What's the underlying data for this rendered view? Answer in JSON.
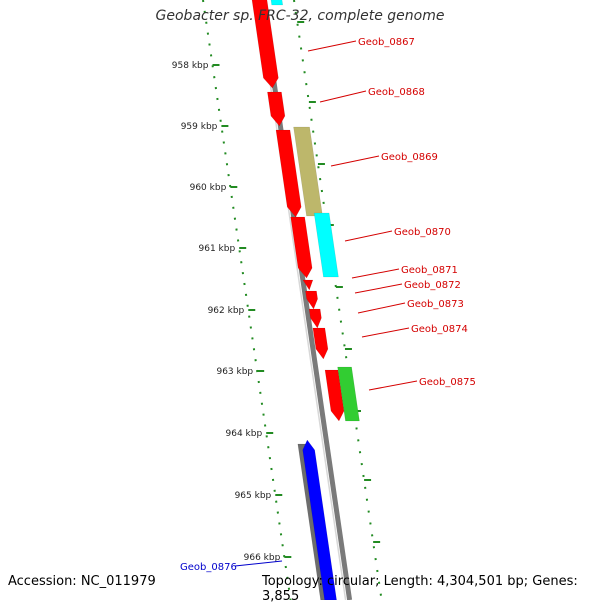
{
  "title": "Geobacter sp. FRC-32, complete genome",
  "footer": {
    "accession": "Accession: NC_011979",
    "summary": "Topology: circular; Length: 4,304,501 bp; Genes: 3,855"
  },
  "colors": {
    "cds_red": "#ff0000",
    "cds_cyan": "#00ffff",
    "cds_khaki": "#bdb76b",
    "cds_green": "#32cd32",
    "cds_blue": "#0000ff",
    "cds_gray": "#808080",
    "tick_green": "#228b22",
    "label_red": "#d40000",
    "label_blue": "#0000cc"
  },
  "ticks": [
    {
      "label": "958 kbp"
    },
    {
      "label": "959 kbp"
    },
    {
      "label": "960 kbp"
    },
    {
      "label": "961 kbp"
    },
    {
      "label": "962 kbp"
    },
    {
      "label": "963 kbp"
    },
    {
      "label": "964 kbp"
    },
    {
      "label": "965 kbp"
    },
    {
      "label": "966 kbp"
    }
  ],
  "gene_labels": [
    {
      "text": "Geob_0867"
    },
    {
      "text": "Geob_0868"
    },
    {
      "text": "Geob_0869"
    },
    {
      "text": "Geob_0870"
    },
    {
      "text": "Geob_0871"
    },
    {
      "text": "Geob_0872"
    },
    {
      "text": "Geob_0873"
    },
    {
      "text": "Geob_0874"
    },
    {
      "text": "Geob_0875"
    },
    {
      "text": "Geob_0876"
    }
  ]
}
